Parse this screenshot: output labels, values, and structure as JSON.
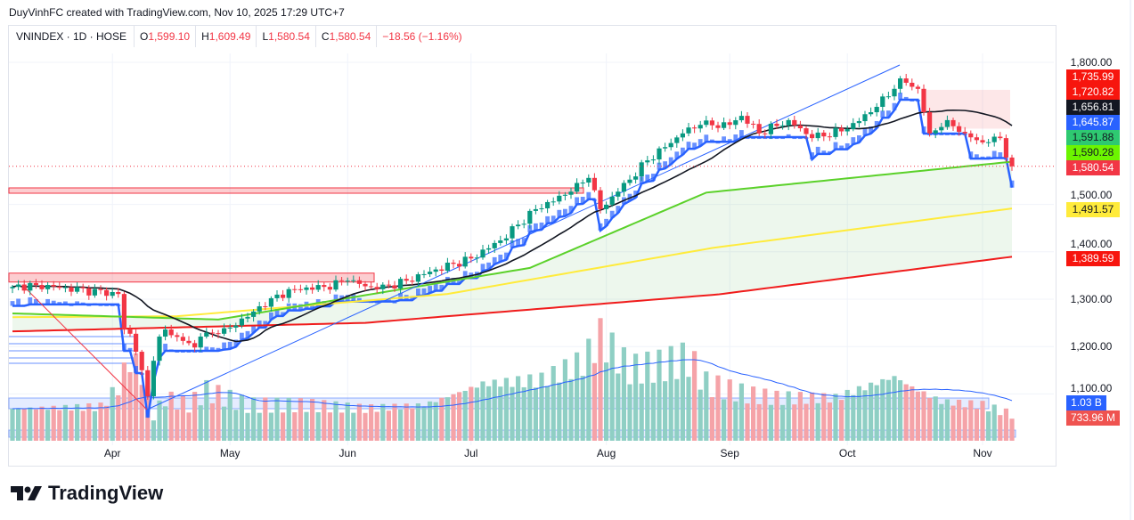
{
  "credit": "DuyVinhFC created with TradingView.com, Nov 10, 2025 17:29 UTC+7",
  "legend": {
    "symbol": "VNINDEX · 1D · HOSE",
    "o_label": "O",
    "open": "1,599.10",
    "h_label": "H",
    "high": "1,609.49",
    "l_label": "L",
    "low": "1,580.54",
    "c_label": "C",
    "close": "1,580.54",
    "change": "−18.56 (−1.16%)"
  },
  "logo": "TradingView",
  "colors": {
    "up": "#089981",
    "down": "#f23645",
    "vol_up": "#8fcfc4",
    "vol_down": "#f5a3a8",
    "ma20": "#131722",
    "ma50": "#5bd12a",
    "ma100": "#ffeb3b",
    "ma200": "#f01c1c",
    "supertrend": "#2962ff"
  },
  "chart_data": {
    "type": "candlestick",
    "title": "VNINDEX · 1D · HOSE",
    "ylim": [
      1030,
      1820
    ],
    "y_ticks": [
      "1,800.00",
      "1,500.00",
      "1,400.00",
      "1,300.00",
      "1,200.00",
      "1,100.00"
    ],
    "y_tick_values": [
      1800,
      1500,
      1400,
      1300,
      1200,
      1100
    ],
    "x_ticks": [
      {
        "label": "Apr",
        "day": 17
      },
      {
        "label": "May",
        "day": 37
      },
      {
        "label": "Jun",
        "day": 57
      },
      {
        "label": "Jul",
        "day": 78
      },
      {
        "label": "Aug",
        "day": 101
      },
      {
        "label": "Sep",
        "day": 122
      },
      {
        "label": "Oct",
        "day": 142
      },
      {
        "label": "Nov",
        "day": 165
      }
    ],
    "n_days": 171,
    "close_keypoints": [
      [
        0,
        1326
      ],
      [
        4,
        1330
      ],
      [
        18,
        1311
      ],
      [
        19,
        1236
      ],
      [
        20,
        1227
      ],
      [
        21,
        1189
      ],
      [
        22,
        1150
      ],
      [
        23,
        1095
      ],
      [
        23.5,
        1142
      ],
      [
        24,
        1170
      ],
      [
        25,
        1221
      ],
      [
        26,
        1236
      ],
      [
        27,
        1224
      ],
      [
        29,
        1212
      ],
      [
        31,
        1198
      ],
      [
        32,
        1221
      ],
      [
        35,
        1227
      ],
      [
        37,
        1240
      ],
      [
        41,
        1274
      ],
      [
        44,
        1302
      ],
      [
        48,
        1321
      ],
      [
        53,
        1326
      ],
      [
        57,
        1339
      ],
      [
        62,
        1321
      ],
      [
        67,
        1339
      ],
      [
        71,
        1358
      ],
      [
        78,
        1386
      ],
      [
        83,
        1424
      ],
      [
        89,
        1490
      ],
      [
        95,
        1527
      ],
      [
        98,
        1556
      ],
      [
        100,
        1490
      ],
      [
        103,
        1527
      ],
      [
        108,
        1593
      ],
      [
        114,
        1650
      ],
      [
        117,
        1668
      ],
      [
        122,
        1668
      ],
      [
        124,
        1687
      ],
      [
        127,
        1650
      ],
      [
        132,
        1678
      ],
      [
        136,
        1640
      ],
      [
        142,
        1659
      ],
      [
        147,
        1706
      ],
      [
        150,
        1744
      ],
      [
        151,
        1766
      ],
      [
        154,
        1744
      ],
      [
        156,
        1650
      ],
      [
        159,
        1678
      ],
      [
        162,
        1650
      ],
      [
        165,
        1631
      ],
      [
        168,
        1640
      ],
      [
        169,
        1599
      ],
      [
        170,
        1580.54
      ]
    ],
    "volume_keypoints_millions": [
      [
        0,
        900
      ],
      [
        15,
        950
      ],
      [
        18,
        1500
      ],
      [
        20,
        2300
      ],
      [
        22,
        1900
      ],
      [
        24,
        700
      ],
      [
        26,
        1200
      ],
      [
        30,
        1000
      ],
      [
        33,
        1400
      ],
      [
        40,
        1000
      ],
      [
        50,
        1000
      ],
      [
        60,
        900
      ],
      [
        70,
        1000
      ],
      [
        80,
        1600
      ],
      [
        90,
        1700
      ],
      [
        97,
        2200
      ],
      [
        100,
        2900
      ],
      [
        105,
        2000
      ],
      [
        110,
        2100
      ],
      [
        115,
        2300
      ],
      [
        118,
        1600
      ],
      [
        125,
        1300
      ],
      [
        130,
        1200
      ],
      [
        140,
        1200
      ],
      [
        150,
        1800
      ],
      [
        153,
        1500
      ],
      [
        158,
        1100
      ],
      [
        165,
        1000
      ],
      [
        170,
        734
      ]
    ],
    "ma_keypoints": {
      "MA50": [
        [
          0,
          1270
        ],
        [
          35,
          1257
        ],
        [
          88,
          1366
        ],
        [
          118,
          1525
        ],
        [
          170,
          1590.28
        ]
      ],
      "MA100": [
        [
          0,
          1262
        ],
        [
          28,
          1264
        ],
        [
          74,
          1311
        ],
        [
          119,
          1408
        ],
        [
          170,
          1491.57
        ]
      ],
      "MA200": [
        [
          0,
          1232
        ],
        [
          60,
          1250
        ],
        [
          120,
          1310
        ],
        [
          170,
          1389.59
        ]
      ]
    },
    "price_labels": [
      {
        "value": "1,735.99",
        "color": "#f7150e",
        "text": "#fff"
      },
      {
        "value": "1,720.82",
        "color": "#f7150e",
        "text": "#fff"
      },
      {
        "value": "1,656.81",
        "color": "#131722",
        "text": "#fff"
      },
      {
        "value": "1,645.87",
        "color": "#2962ff",
        "text": "#fff"
      },
      {
        "value": "1,591.88",
        "color": "#2ec971",
        "text": "#131722"
      },
      {
        "value": "1,590.28",
        "color": "#6cf500",
        "text": "#131722"
      },
      {
        "value": "1,580.54",
        "color": "#f23645",
        "text": "#fff"
      },
      {
        "value": "1,491.57",
        "color": "#ffeb3b",
        "text": "#131722"
      },
      {
        "value": "1,389.59",
        "color": "#f7150e",
        "text": "#fff"
      }
    ],
    "volume_labels": [
      {
        "value": "1.03 B",
        "color": "#2962ff"
      },
      {
        "value": "733.96 M",
        "color": "#ef5350"
      }
    ]
  }
}
